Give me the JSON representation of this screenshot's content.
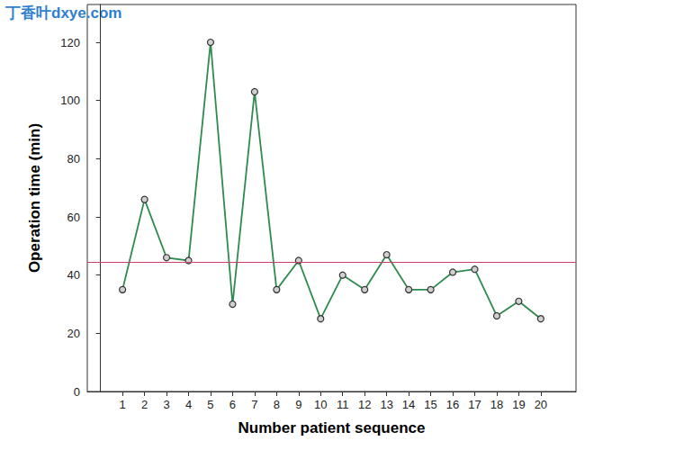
{
  "chart_data": {
    "type": "line",
    "watermark": "丁香叶dxye.com",
    "xlabel": "Number patient sequence",
    "ylabel": "Operation time (min)",
    "x": [
      1,
      2,
      3,
      4,
      5,
      6,
      7,
      8,
      9,
      10,
      11,
      12,
      13,
      14,
      15,
      16,
      17,
      18,
      19,
      20
    ],
    "values": [
      35,
      66,
      46,
      45,
      120,
      30,
      103,
      35,
      45,
      25,
      40,
      35,
      47,
      35,
      35,
      41,
      42,
      26,
      31,
      25
    ],
    "color": "#2f8a4e",
    "marker": "circle",
    "reference_line": {
      "value": 44.5,
      "color": "#c9406b"
    },
    "xlim": [
      -0.6,
      21.6
    ],
    "xticks": [
      1,
      2,
      3,
      4,
      5,
      6,
      7,
      8,
      9,
      10,
      11,
      12,
      13,
      14,
      15,
      16,
      17,
      18,
      19,
      20
    ],
    "ylim": [
      0,
      133
    ],
    "yticks": [
      0,
      20,
      40,
      60,
      80,
      100,
      120
    ],
    "grid": false
  }
}
